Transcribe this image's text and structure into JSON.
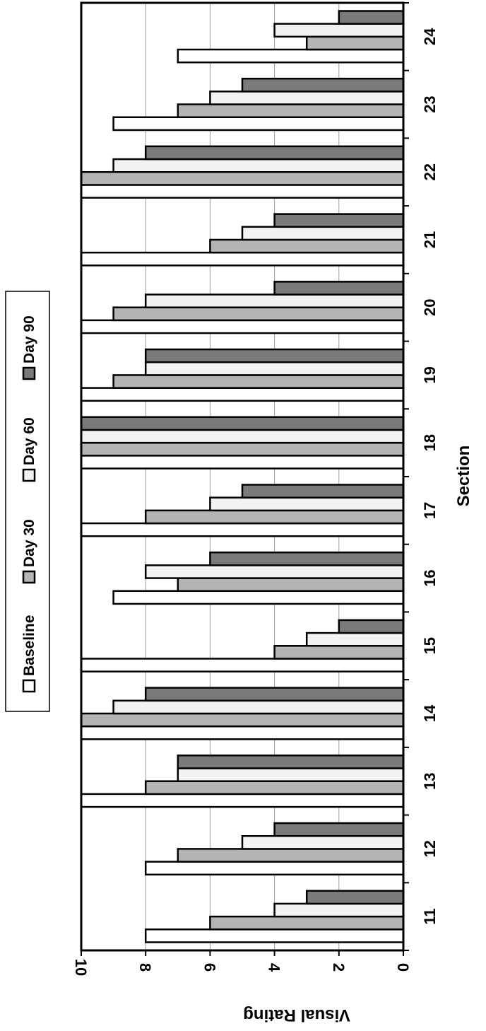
{
  "chart_data": {
    "type": "bar",
    "orientation": "horizontal",
    "xlabel": "Section",
    "ylabel": "Visual Rating",
    "ylim": [
      0,
      10
    ],
    "y_ticks": [
      0,
      2,
      4,
      6,
      8,
      10
    ],
    "grid": true,
    "legend_position": "top",
    "categories": [
      "11",
      "12",
      "13",
      "14",
      "15",
      "16",
      "17",
      "18",
      "19",
      "20",
      "21",
      "22",
      "23",
      "24"
    ],
    "series": [
      {
        "name": "Baseline",
        "color": "#ffffff",
        "values": [
          8,
          8,
          10,
          10,
          10,
          9,
          10,
          10,
          10,
          10,
          10,
          10,
          9,
          7
        ]
      },
      {
        "name": "Day 30",
        "color": "#b4b4b4",
        "values": [
          6,
          7,
          8,
          10,
          4,
          7,
          8,
          10,
          9,
          9,
          6,
          10,
          7,
          3
        ]
      },
      {
        "name": "Day 60",
        "color": "#f2f2f2",
        "values": [
          4,
          5,
          7,
          9,
          3,
          8,
          6,
          10,
          8,
          8,
          5,
          9,
          6,
          4
        ]
      },
      {
        "name": "Day 90",
        "color": "#7a7a7a",
        "values": [
          3,
          4,
          7,
          8,
          2,
          6,
          5,
          10,
          8,
          4,
          4,
          8,
          5,
          2
        ]
      }
    ]
  }
}
